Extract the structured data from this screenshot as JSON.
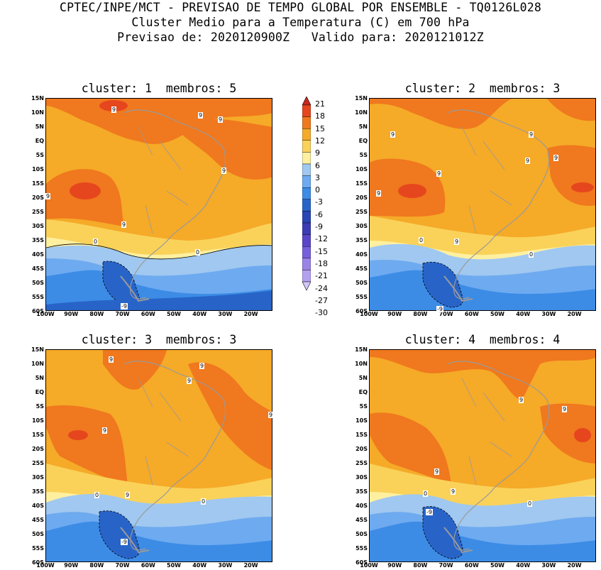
{
  "header": {
    "line1": "CPTEC/INPE/MCT - PREVISAO DE TEMPO GLOBAL POR ENSEMBLE - TQ0126L028",
    "line2": "Cluster Medio para a Temperatura (C) em 700 hPa",
    "line3": "Previsao de: 2020120900Z   Valido para: 2020121012Z"
  },
  "panels": [
    {
      "title": "cluster: 1  membros: 5"
    },
    {
      "title": "cluster: 2  membros: 3"
    },
    {
      "title": "cluster: 3  membros: 3"
    },
    {
      "title": "cluster: 4  membros: 4"
    }
  ],
  "axes": {
    "lat_labels": [
      "15N",
      "10N",
      "5N",
      "EQ",
      "5S",
      "10S",
      "15S",
      "20S",
      "25S",
      "30S",
      "35S",
      "40S",
      "45S",
      "50S",
      "55S",
      "60S"
    ],
    "lon_labels": [
      "100W",
      "90W",
      "80W",
      "70W",
      "60W",
      "50W",
      "40W",
      "30W",
      "20W"
    ]
  },
  "colorbar": {
    "labels": [
      "21",
      "18",
      "15",
      "12",
      "9",
      "6",
      "3",
      "0",
      "-3",
      "-6",
      "-9",
      "-12",
      "-15",
      "-18",
      "-21",
      "-24",
      "-27",
      "-30"
    ],
    "colors": [
      "#c8281e",
      "#e6461e",
      "#f0781e",
      "#f5aa28",
      "#fad25a",
      "#fff0a0",
      "#a0c8f0",
      "#6eaaf0",
      "#3c8ce6",
      "#2864c8",
      "#2846b4",
      "#3c3cb4",
      "#5a46c8",
      "#7860dc",
      "#9a82e6",
      "#b4a0f0",
      "#d2c8f8"
    ]
  },
  "palette": {
    "p9": "#f0781e",
    "p6": "#f5aa28",
    "p3": "#fad25a",
    "p0": "#fff0a0",
    "n0": "#a0c8f0",
    "n3": "#6eaaf0",
    "n6": "#3c8ce6",
    "n9": "#2864c8",
    "warm12": "#e6461e",
    "land": "#9a9a9a"
  },
  "contour_labels": {
    "c1": [
      "9",
      "9",
      "9",
      "9",
      "9",
      "9",
      "0",
      "0",
      "-9"
    ],
    "c2": [
      "9",
      "9",
      "9",
      "9",
      "9",
      "9",
      "9",
      "0",
      "0",
      "-9"
    ],
    "c3": [
      "9",
      "9",
      "9",
      "9",
      "9",
      "9",
      "0",
      "0",
      "-9"
    ],
    "c4": [
      "9",
      "9",
      "9",
      "9",
      "0",
      "0",
      "-9"
    ]
  }
}
